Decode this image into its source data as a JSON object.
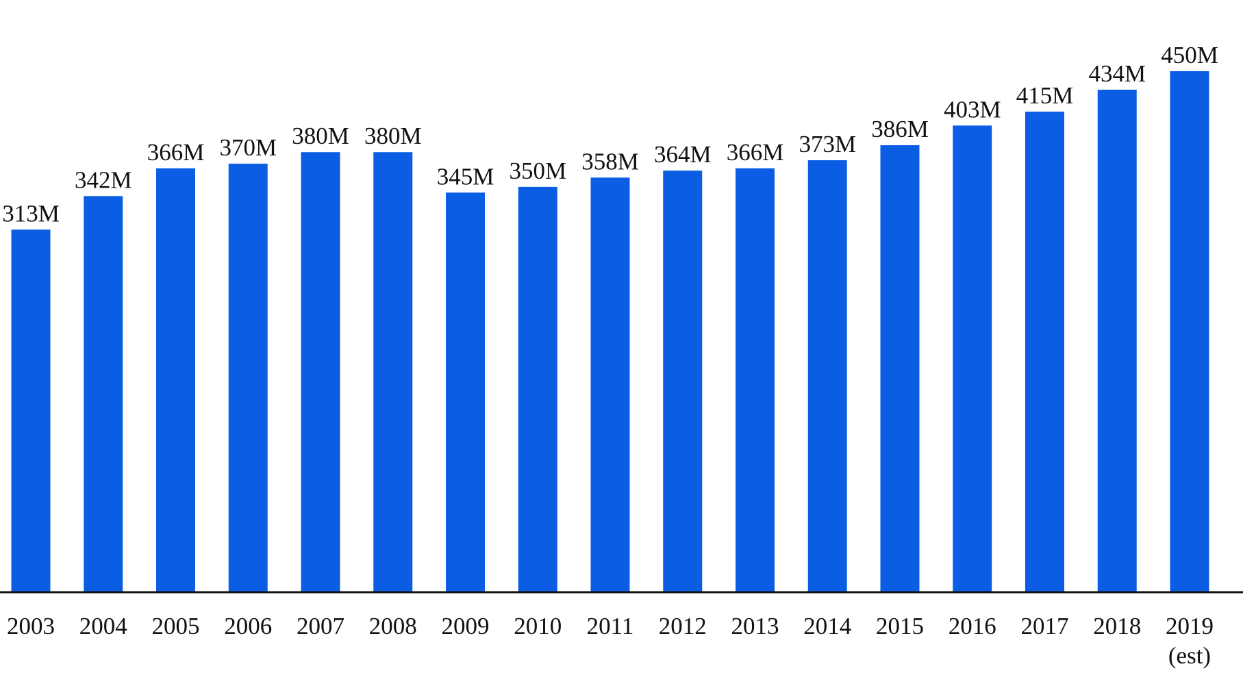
{
  "chart_data": {
    "type": "bar",
    "categories": [
      "2003",
      "2004",
      "2005",
      "2006",
      "2007",
      "2008",
      "2009",
      "2010",
      "2011",
      "2012",
      "2013",
      "2014",
      "2015",
      "2016",
      "2017",
      "2018",
      "2019"
    ],
    "category_sublabels": [
      "",
      "",
      "",
      "",
      "",
      "",
      "",
      "",
      "",
      "",
      "",
      "",
      "",
      "",
      "",
      "",
      "(est)"
    ],
    "values": [
      313,
      342,
      366,
      370,
      380,
      380,
      345,
      350,
      358,
      364,
      366,
      373,
      386,
      403,
      415,
      434,
      450
    ],
    "data_labels": [
      "313M",
      "342M",
      "366M",
      "370M",
      "380M",
      "380M",
      "345M",
      "350M",
      "358M",
      "364M",
      "366M",
      "373M",
      "386M",
      "403M",
      "415M",
      "434M",
      "450M"
    ],
    "title": "",
    "xlabel": "",
    "ylabel": "",
    "ylim": [
      0,
      450
    ],
    "grid": false,
    "legend": "none",
    "colors": {
      "bar": "#0b5ee4",
      "axis": "#111111",
      "text": "#111111"
    }
  }
}
